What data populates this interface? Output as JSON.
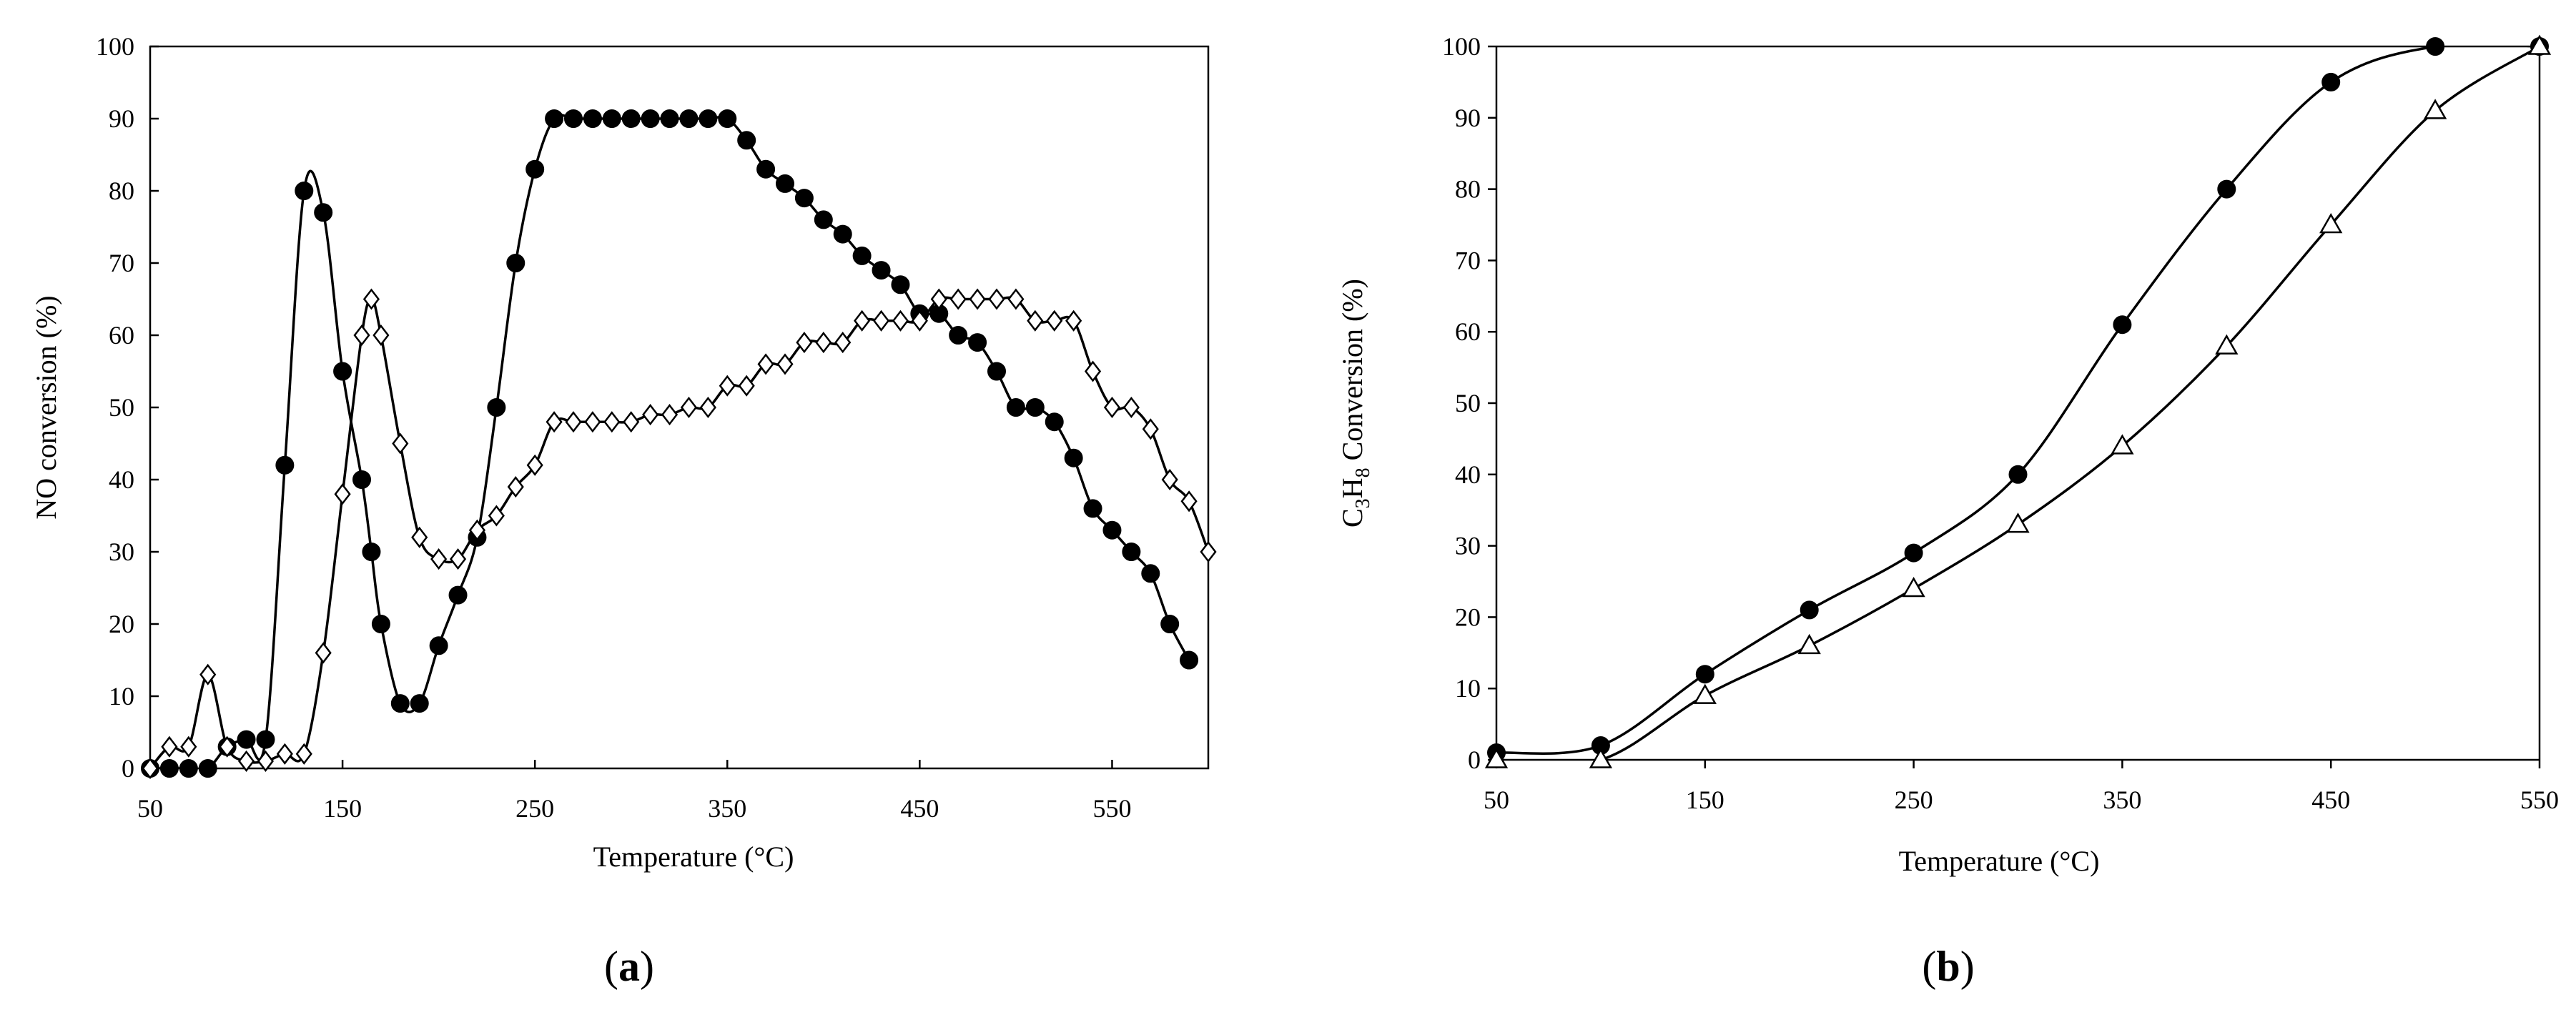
{
  "chart_data": [
    {
      "id": "a",
      "type": "line",
      "panel_label": "(a)",
      "xlabel": "Temperature (°C)",
      "ylabel": "NO conversion (%)",
      "xlim": [
        50,
        600
      ],
      "ylim": [
        0,
        100
      ],
      "xticks": [
        50,
        150,
        250,
        350,
        450,
        550
      ],
      "yticks": [
        0,
        10,
        20,
        30,
        40,
        50,
        60,
        70,
        80,
        90,
        100
      ],
      "grid": false,
      "series": [
        {
          "name": "filled circles",
          "marker": "circle-filled",
          "x": [
            50,
            60,
            70,
            80,
            90,
            100,
            110,
            120,
            130,
            140,
            150,
            160,
            165,
            170,
            180,
            190,
            200,
            210,
            220,
            230,
            240,
            250,
            260,
            270,
            280,
            290,
            300,
            310,
            320,
            330,
            340,
            350,
            360,
            370,
            380,
            390,
            400,
            410,
            420,
            430,
            440,
            450,
            460,
            470,
            480,
            490,
            500,
            510,
            520,
            530,
            540,
            550,
            560,
            570,
            580,
            590
          ],
          "y": [
            0,
            0,
            0,
            0,
            3,
            4,
            4,
            42,
            80,
            77,
            55,
            40,
            30,
            20,
            9,
            9,
            17,
            24,
            32,
            50,
            70,
            83,
            90,
            90,
            90,
            90,
            90,
            90,
            90,
            90,
            90,
            90,
            87,
            83,
            81,
            79,
            76,
            74,
            71,
            69,
            67,
            63,
            63,
            60,
            59,
            55,
            50,
            50,
            48,
            43,
            36,
            33,
            30,
            27,
            20,
            15
          ]
        },
        {
          "name": "open diamonds",
          "marker": "diamond-open",
          "x": [
            50,
            60,
            70,
            80,
            90,
            100,
            110,
            120,
            130,
            140,
            150,
            160,
            165,
            170,
            180,
            190,
            200,
            210,
            220,
            230,
            240,
            250,
            260,
            270,
            280,
            290,
            300,
            310,
            320,
            330,
            340,
            350,
            360,
            370,
            380,
            390,
            400,
            410,
            420,
            430,
            440,
            450,
            460,
            470,
            480,
            490,
            500,
            510,
            520,
            530,
            540,
            550,
            560,
            570,
            580,
            590,
            600
          ],
          "y": [
            0,
            3,
            3,
            13,
            3,
            1,
            1,
            2,
            2,
            16,
            38,
            60,
            65,
            60,
            45,
            32,
            29,
            29,
            33,
            35,
            39,
            42,
            48,
            48,
            48,
            48,
            48,
            49,
            49,
            50,
            50,
            53,
            53,
            56,
            56,
            59,
            59,
            59,
            62,
            62,
            62,
            62,
            65,
            65,
            65,
            65,
            65,
            62,
            62,
            62,
            55,
            50,
            50,
            47,
            40,
            37,
            30
          ]
        }
      ]
    },
    {
      "id": "b",
      "type": "line",
      "panel_label": "(b)",
      "xlabel": "Temperature (°C)",
      "ylabel": "C3H8 Conversion (%)",
      "ylabel_parts": {
        "c": "C",
        "c_sub": "3",
        "h": "H",
        "h_sub": "8",
        "rest": " Conversion (%)"
      },
      "xlim": [
        50,
        550
      ],
      "ylim": [
        0,
        100
      ],
      "xticks": [
        50,
        150,
        250,
        350,
        450,
        550
      ],
      "yticks": [
        0,
        10,
        20,
        30,
        40,
        50,
        60,
        70,
        80,
        90,
        100
      ],
      "grid": false,
      "series": [
        {
          "name": "filled circles",
          "marker": "circle-filled",
          "x": [
            50,
            100,
            150,
            200,
            250,
            300,
            350,
            400,
            450,
            500,
            550
          ],
          "y": [
            1,
            2,
            12,
            21,
            29,
            40,
            61,
            80,
            95,
            100,
            100
          ]
        },
        {
          "name": "open triangles",
          "marker": "triangle-open",
          "x": [
            50,
            100,
            150,
            200,
            250,
            300,
            350,
            400,
            450,
            500,
            550
          ],
          "y": [
            0,
            0,
            9,
            16,
            24,
            33,
            44,
            58,
            75,
            91,
            100
          ]
        }
      ]
    }
  ]
}
